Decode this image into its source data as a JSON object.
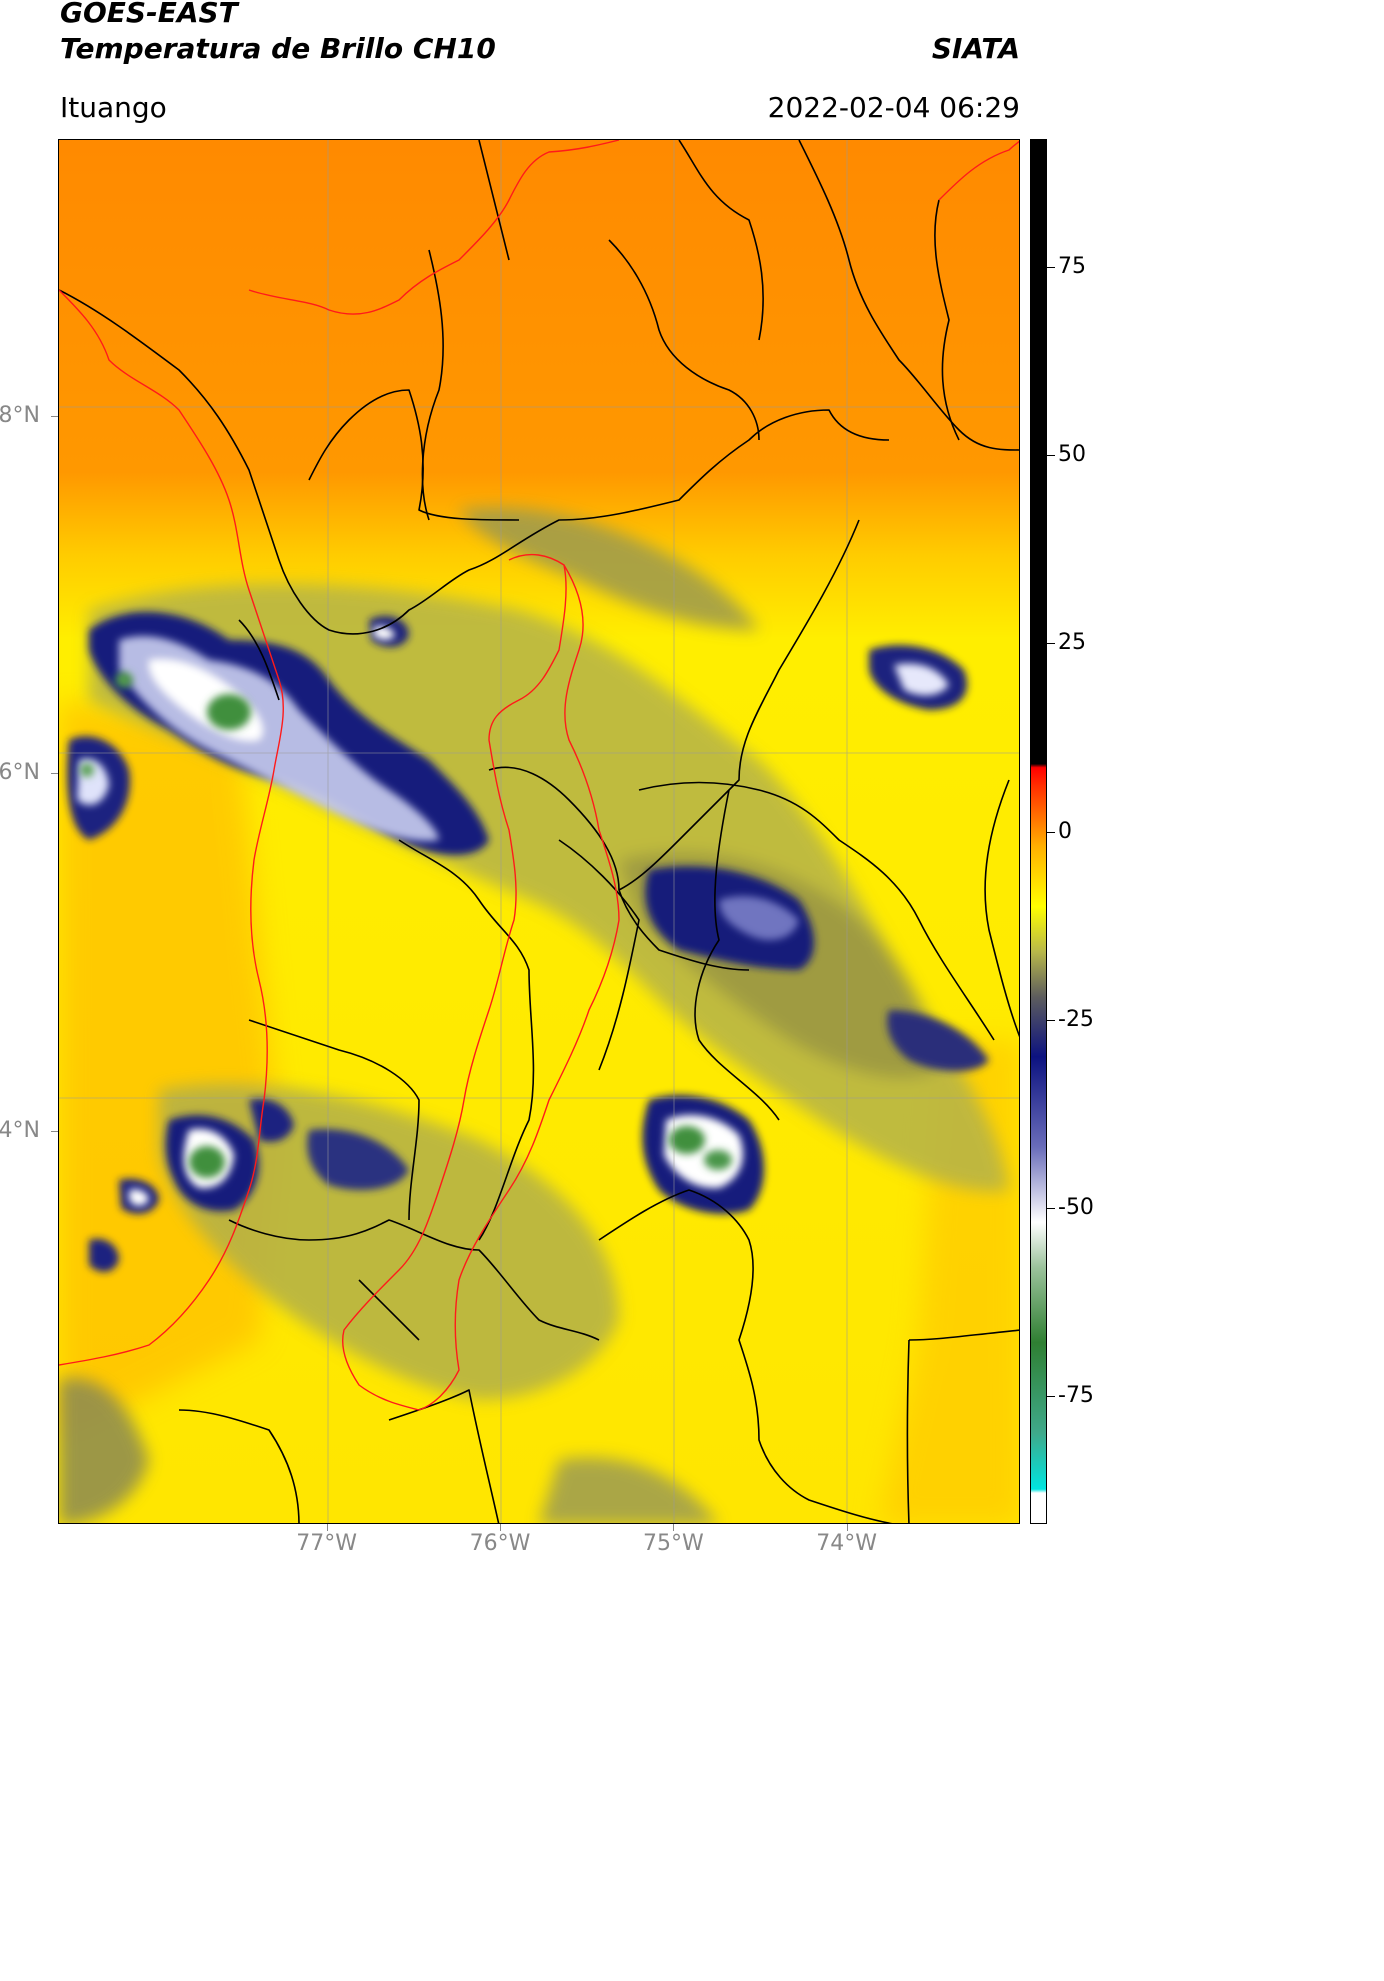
{
  "header": {
    "title_line1": "GOES-EAST",
    "title_line2": "Temperatura de Brillo CH10",
    "brand": "SIATA",
    "location": "Ituango",
    "datetime": "2022-02-04 06:29"
  },
  "map": {
    "lat_labels": [
      "8°N",
      "6°N",
      "4°N"
    ],
    "lon_labels": [
      "77°W",
      "76°W",
      "75°W",
      "74°W"
    ],
    "lat_values": [
      8,
      6,
      4
    ],
    "lon_values": [
      -77,
      -76,
      -75,
      -74
    ],
    "lon_range": [
      -78.55,
      -73.0
    ],
    "lat_range": [
      1.8,
      9.55
    ],
    "colors": {
      "orange_bg": "#ff9a00",
      "yellow_bg": "#ffe000",
      "olive": "#a9a83a",
      "navy": "#1a1f7a",
      "white": "#f4f6ff",
      "green": "#3f8f3c",
      "border_black": "#000000",
      "border_red": "#ff1a1a",
      "grid": "#9a9a9a"
    }
  },
  "colorbar": {
    "labels": [
      "75",
      "50",
      "25",
      "0",
      "-25",
      "-50",
      "-75"
    ],
    "values": [
      75,
      50,
      25,
      0,
      -25,
      -50,
      -75
    ],
    "range": [
      -92,
      92
    ],
    "stops": [
      {
        "v": -92,
        "c": "#ffffff"
      },
      {
        "v": -88,
        "c": "#ffffff"
      },
      {
        "v": -87.5,
        "c": "#00e5e0"
      },
      {
        "v": -80,
        "c": "#3fa98a"
      },
      {
        "v": -68,
        "c": "#2f7f32"
      },
      {
        "v": -58,
        "c": "#9cc39c"
      },
      {
        "v": -52,
        "c": "#ffffff"
      },
      {
        "v": -42,
        "c": "#6a6dba"
      },
      {
        "v": -30,
        "c": "#0c1280"
      },
      {
        "v": -22,
        "c": "#5d5d5d"
      },
      {
        "v": -16,
        "c": "#b8b84a"
      },
      {
        "v": -10,
        "c": "#ffff00"
      },
      {
        "v": -2,
        "c": "#ffb000"
      },
      {
        "v": 6,
        "c": "#ff3000"
      },
      {
        "v": 8.5,
        "c": "#ff0000"
      },
      {
        "v": 9,
        "c": "#000000"
      },
      {
        "v": 92,
        "c": "#000000"
      }
    ]
  }
}
